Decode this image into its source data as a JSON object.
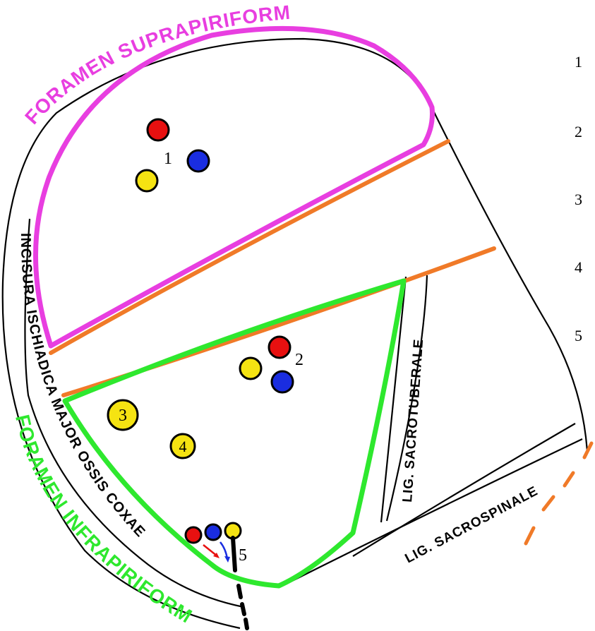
{
  "labels": {
    "foramen_supra": "FORAMEN SUPRAPIRIFORME",
    "foramen_infra": "FORAMEN INFRAPIRIFORME",
    "incisura": "INCISURA ISCHIADICA MAJOR OSSIS COXAE",
    "lig_sacrotuberale": "LIG. SACROTUBERALE",
    "lig_sacrospinale": "LIG. SACROSPINALE"
  },
  "markers": {
    "group1": "1",
    "group2": "2",
    "vessel3": "3",
    "vessel4": "4",
    "group5": "5"
  },
  "legend": [
    "1",
    "2",
    "3",
    "4",
    "5"
  ],
  "colors": {
    "supra_outline": "#e83ee0",
    "infra_outline": "#2ee82e",
    "piriformis_border": "#f07a28",
    "artery": "#e81010",
    "vein": "#1a2de0",
    "nerve": "#f5e312",
    "outline": "#000000"
  }
}
